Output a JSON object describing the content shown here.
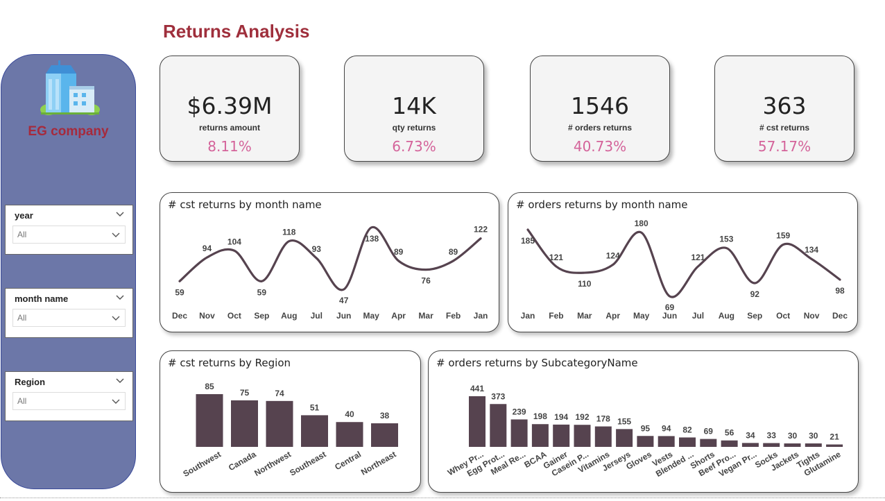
{
  "page": {
    "title": "Returns Analysis"
  },
  "sidebar": {
    "company": "EG company",
    "logo_icon": "building-icon",
    "slicers": [
      {
        "label": "year",
        "value": "All"
      },
      {
        "label": "month name",
        "value": "All"
      },
      {
        "label": "Region",
        "value": "All"
      }
    ]
  },
  "kpis": [
    {
      "value": "$6.39M",
      "label": "returns amount",
      "pct": "8.11%"
    },
    {
      "value": "14K",
      "label": "qty returns",
      "pct": "6.73%"
    },
    {
      "value": "1546",
      "label": "# orders returns",
      "pct": "40.73%"
    },
    {
      "value": "363",
      "label": "# cst returns",
      "pct": "57.17%"
    }
  ],
  "colors": {
    "accent": "#9f2f3c",
    "series": "#56434f",
    "pct": "#d4639a",
    "sidebar": "#6c77a8"
  },
  "chart_data": [
    {
      "type": "line",
      "title": "# cst returns by month name",
      "categories": [
        "Dec",
        "Nov",
        "Oct",
        "Sep",
        "Aug",
        "Jul",
        "Jun",
        "May",
        "Apr",
        "Mar",
        "Feb",
        "Jan"
      ],
      "values": [
        59,
        94,
        104,
        59,
        118,
        93,
        47,
        138,
        89,
        76,
        89,
        122
      ]
    },
    {
      "type": "line",
      "title": "# orders returns by month name",
      "categories": [
        "Jan",
        "Feb",
        "Mar",
        "Apr",
        "May",
        "Jun",
        "Jul",
        "Aug",
        "Sep",
        "Oct",
        "Nov",
        "Dec"
      ],
      "values": [
        185,
        121,
        110,
        124,
        180,
        69,
        121,
        153,
        92,
        159,
        134,
        98
      ]
    },
    {
      "type": "bar",
      "title": "# cst returns by Region",
      "categories": [
        "Southwest",
        "Canada",
        "Northwest",
        "Southeast",
        "Central",
        "Northeast"
      ],
      "values": [
        85,
        75,
        74,
        51,
        40,
        38
      ]
    },
    {
      "type": "bar",
      "title": "# orders returns by SubcategoryName",
      "categories": [
        "Whey Pr...",
        "Egg Prot...",
        "Meal Re...",
        "BCAA",
        "Gainer",
        "Casein P...",
        "Vitamins",
        "Jerseys",
        "Gloves",
        "Vests",
        "Blended ...",
        "Shorts",
        "Beef Pro...",
        "Vegan Pr...",
        "Socks",
        "Jackets",
        "Tights",
        "Glutamine"
      ],
      "values": [
        441,
        373,
        239,
        198,
        194,
        192,
        178,
        155,
        95,
        94,
        82,
        69,
        56,
        34,
        33,
        30,
        30,
        21
      ]
    }
  ]
}
